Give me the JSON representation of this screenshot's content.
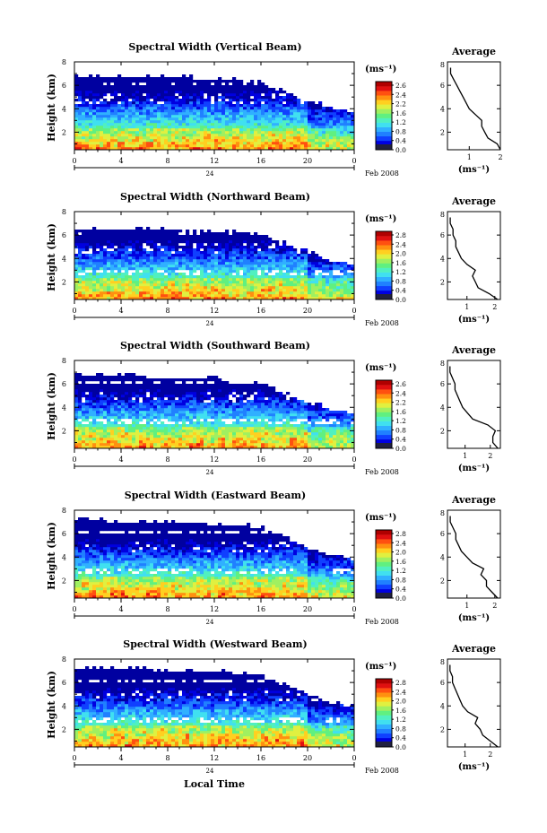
{
  "figure": {
    "height_label": "Height (km)",
    "xlabel": "Local Time",
    "date_day": "24",
    "date_label": "Feb 2008",
    "colorbar_unit": "(ms⁻¹)",
    "colorbar_ticks": [
      "2.8",
      "2.4",
      "2.0",
      "1.6",
      "1.2",
      "0.8",
      "0.4",
      "0.0"
    ],
    "colorbar_ticks_variant": [
      "2.6",
      "2.4",
      "2.2",
      "1.6",
      "1.2",
      "0.8",
      "0.4",
      "0.0"
    ],
    "average_title": "Average",
    "average_xlabel": "(ms⁻¹)",
    "colors": [
      "#0000a0",
      "#0000e0",
      "#1040ff",
      "#2080ff",
      "#30b0ff",
      "#40e0f0",
      "#50f0c0",
      "#60f080",
      "#a0f060",
      "#e0f040",
      "#ffd020",
      "#ff9010",
      "#ff5010",
      "#e01010",
      "#b00000"
    ]
  },
  "chart_data": [
    {
      "type": "heatmap",
      "title": "Spectral Width (Vertical Beam)",
      "x_ticks": [
        "0",
        "4",
        "8",
        "12",
        "16",
        "20",
        "0"
      ],
      "y_ticks": [
        "8",
        "6",
        "4",
        "2"
      ],
      "xlim": [
        0,
        24
      ],
      "ylim": [
        0.5,
        8
      ],
      "data_top_km": [
        6.8,
        6.8,
        6.8,
        6.8,
        6.8,
        6.7,
        6.6,
        6.5,
        6.3,
        5.5,
        4.8,
        4.2,
        3.8
      ],
      "average": {
        "x_ticks": [
          "1",
          "2"
        ],
        "y_ticks": [
          "8",
          "6",
          "4",
          "2"
        ],
        "xlim": [
          0.3,
          2.0
        ],
        "ylim": [
          0.5,
          8
        ],
        "height_km": [
          0.5,
          1.0,
          1.5,
          2.0,
          2.5,
          3.0,
          3.5,
          4.0,
          4.5,
          5.0,
          5.5,
          6.0,
          6.5,
          7.0,
          7.5
        ],
        "width_ms": [
          2.0,
          1.9,
          1.6,
          1.5,
          1.4,
          1.4,
          1.2,
          1.0,
          0.9,
          0.8,
          0.7,
          0.6,
          0.5,
          0.4,
          0.4
        ]
      }
    },
    {
      "type": "heatmap",
      "title": "Spectral Width (Northward Beam)",
      "x_ticks": [
        "0",
        "4",
        "8",
        "12",
        "16",
        "20",
        "0"
      ],
      "y_ticks": [
        "8",
        "6",
        "4",
        "2"
      ],
      "xlim": [
        0,
        24
      ],
      "ylim": [
        0.5,
        8
      ],
      "data_top_km": [
        6.6,
        6.6,
        6.6,
        6.5,
        6.5,
        6.4,
        6.4,
        6.3,
        6.2,
        5.4,
        4.6,
        3.9,
        3.6
      ],
      "average": {
        "x_ticks": [
          "1",
          "2"
        ],
        "y_ticks": [
          "8",
          "6",
          "4",
          "2"
        ],
        "xlim": [
          0.3,
          2.2
        ],
        "ylim": [
          0.5,
          8
        ],
        "height_km": [
          0.5,
          1.0,
          1.5,
          2.0,
          2.5,
          3.0,
          3.5,
          4.0,
          4.5,
          5.0,
          5.5,
          6.0,
          6.5,
          7.0,
          7.5
        ],
        "width_ms": [
          2.1,
          1.8,
          1.4,
          1.3,
          1.2,
          1.3,
          1.0,
          0.8,
          0.7,
          0.6,
          0.6,
          0.5,
          0.5,
          0.4,
          0.4
        ]
      }
    },
    {
      "type": "heatmap",
      "title": "Spectral Width (Southward Beam)",
      "x_ticks": [
        "0",
        "4",
        "8",
        "12",
        "16",
        "20",
        "0"
      ],
      "y_ticks": [
        "8",
        "6",
        "4",
        "2"
      ],
      "xlim": [
        0,
        24
      ],
      "ylim": [
        0.5,
        8
      ],
      "data_top_km": [
        6.7,
        6.7,
        6.7,
        6.7,
        6.6,
        6.6,
        6.5,
        6.4,
        6.1,
        5.2,
        4.5,
        3.9,
        3.6
      ],
      "average": {
        "x_ticks": [
          "1",
          "2"
        ],
        "y_ticks": [
          "8",
          "6",
          "4",
          "2"
        ],
        "xlim": [
          0.3,
          2.4
        ],
        "ylim": [
          0.5,
          8
        ],
        "height_km": [
          0.5,
          1.0,
          1.5,
          2.0,
          2.5,
          3.0,
          3.5,
          4.0,
          4.5,
          5.0,
          5.5,
          6.0,
          6.5,
          7.0,
          7.5
        ],
        "width_ms": [
          2.3,
          2.1,
          2.1,
          2.2,
          1.9,
          1.3,
          1.1,
          0.9,
          0.8,
          0.7,
          0.6,
          0.6,
          0.5,
          0.4,
          0.4
        ]
      }
    },
    {
      "type": "heatmap",
      "title": "Spectral Width (Eastward Beam)",
      "x_ticks": [
        "0",
        "4",
        "8",
        "12",
        "16",
        "20",
        "0"
      ],
      "y_ticks": [
        "8",
        "6",
        "4",
        "2"
      ],
      "xlim": [
        0,
        24
      ],
      "ylim": [
        0.5,
        8
      ],
      "data_top_km": [
        7.2,
        7.2,
        7.1,
        7.1,
        7.0,
        7.0,
        6.9,
        6.8,
        6.6,
        5.8,
        4.9,
        4.3,
        3.9
      ],
      "average": {
        "x_ticks": [
          "1",
          "2"
        ],
        "y_ticks": [
          "8",
          "6",
          "4",
          "2"
        ],
        "xlim": [
          0.3,
          2.2
        ],
        "ylim": [
          0.5,
          8
        ],
        "height_km": [
          0.5,
          1.0,
          1.5,
          2.0,
          2.5,
          3.0,
          3.5,
          4.0,
          4.5,
          5.0,
          5.5,
          6.0,
          6.5,
          7.0,
          7.5
        ],
        "width_ms": [
          2.1,
          1.9,
          1.7,
          1.7,
          1.5,
          1.6,
          1.2,
          1.0,
          0.8,
          0.7,
          0.6,
          0.6,
          0.5,
          0.4,
          0.4
        ]
      }
    },
    {
      "type": "heatmap",
      "title": "Spectral Width (Westward Beam)",
      "x_ticks": [
        "0",
        "4",
        "8",
        "12",
        "16",
        "20",
        "0"
      ],
      "y_ticks": [
        "8",
        "6",
        "4",
        "2"
      ],
      "xlim": [
        0,
        24
      ],
      "ylim": [
        0.5,
        8
      ],
      "data_top_km": [
        7.3,
        7.3,
        7.2,
        7.2,
        7.1,
        7.1,
        7.0,
        6.9,
        6.6,
        5.9,
        5.1,
        4.4,
        4.0
      ],
      "average": {
        "x_ticks": [
          "1",
          "2"
        ],
        "y_ticks": [
          "8",
          "6",
          "4",
          "2"
        ],
        "xlim": [
          0.3,
          2.4
        ],
        "ylim": [
          0.5,
          8
        ],
        "height_km": [
          0.5,
          1.0,
          1.5,
          2.0,
          2.5,
          3.0,
          3.5,
          4.0,
          4.5,
          5.0,
          5.5,
          6.0,
          6.5,
          7.0,
          7.5
        ],
        "width_ms": [
          2.3,
          2.0,
          1.7,
          1.6,
          1.4,
          1.5,
          1.1,
          0.9,
          0.8,
          0.7,
          0.6,
          0.5,
          0.5,
          0.4,
          0.4
        ]
      }
    }
  ]
}
